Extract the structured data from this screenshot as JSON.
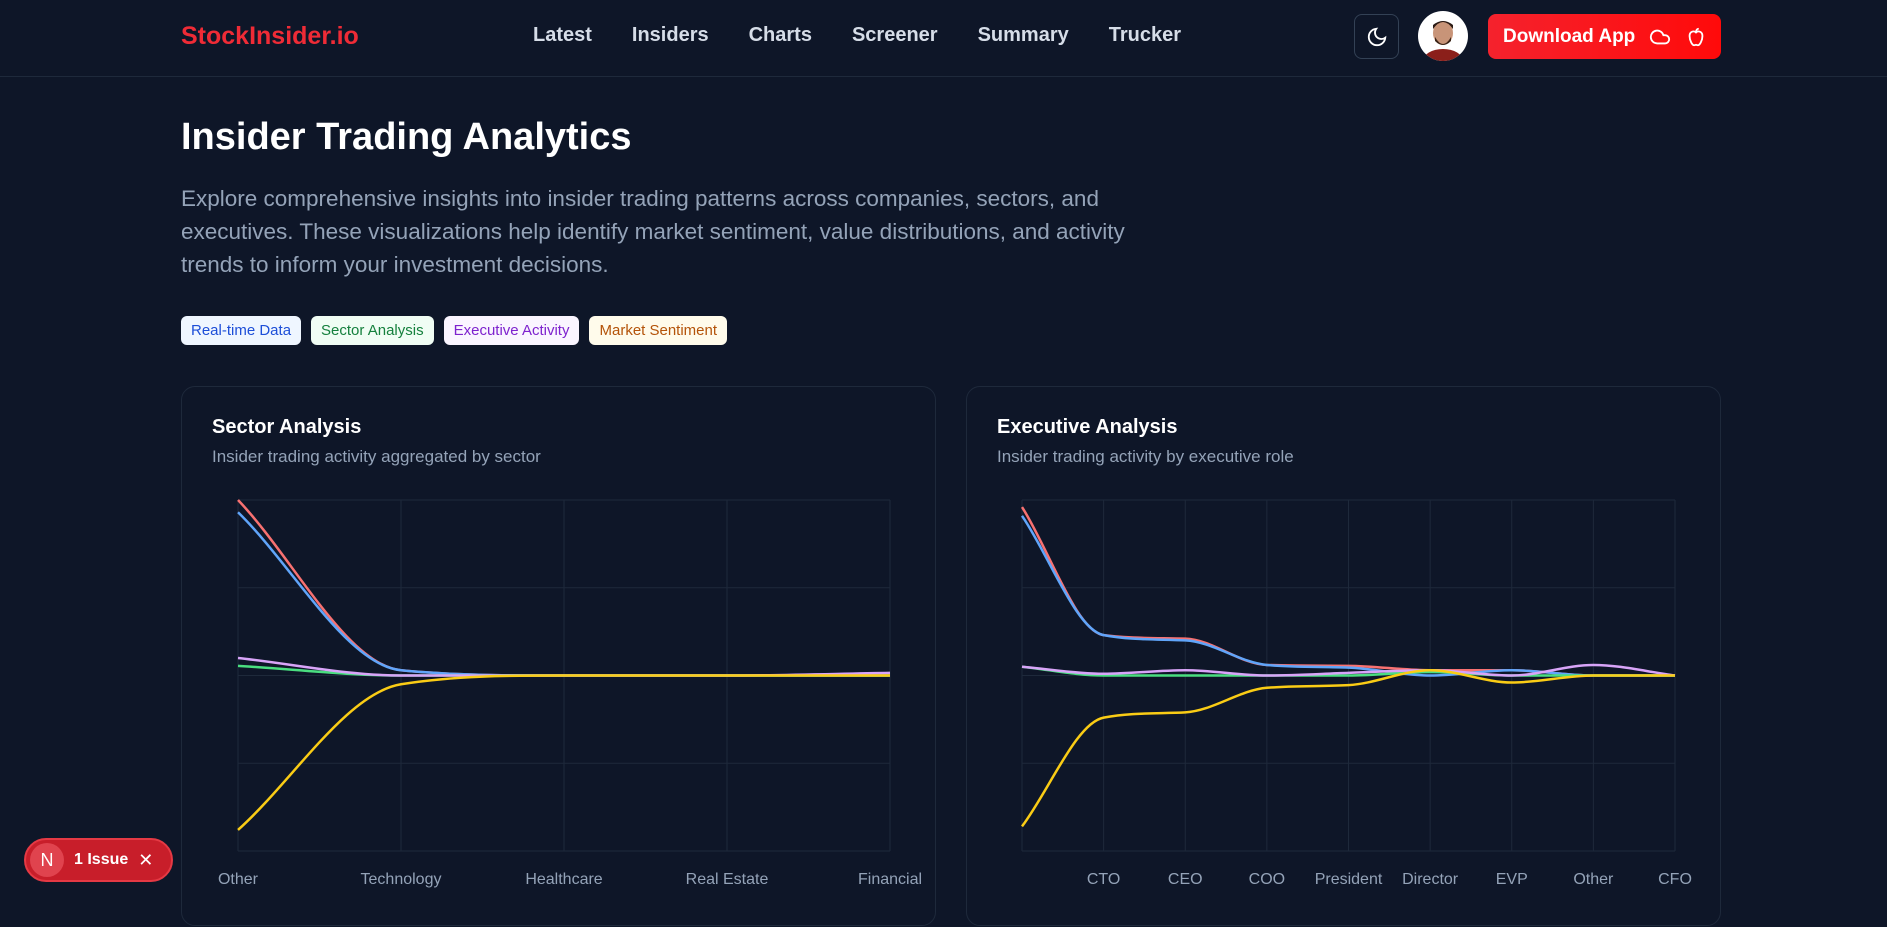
{
  "nav": {
    "logo": "StockInsider.io",
    "links": [
      "Latest",
      "Insiders",
      "Charts",
      "Screener",
      "Summary",
      "Trucker"
    ],
    "download_label": "Download App",
    "theme_icon": "moon-icon",
    "download_icons": [
      "cloud-icon",
      "apple-icon"
    ]
  },
  "hero": {
    "title": "Insider Trading Analytics",
    "description": "Explore comprehensive insights into insider trading patterns across companies, sectors, and executives. These visualizations help identify market sentiment, value distributions, and activity trends to inform your investment decisions.",
    "tags": [
      {
        "label": "Real-time Data",
        "bg": "#eff6ff",
        "fg": "#1d4ed8"
      },
      {
        "label": "Sector Analysis",
        "bg": "#f0fdf4",
        "fg": "#15803d"
      },
      {
        "label": "Executive Activity",
        "bg": "#faf5ff",
        "fg": "#7e22ce"
      },
      {
        "label": "Market Sentiment",
        "bg": "#fffbeb",
        "fg": "#b45309"
      }
    ]
  },
  "issue": {
    "letter": "N",
    "label": "1 Issue"
  },
  "cards": [
    {
      "title": "Sector Analysis",
      "subtitle": "Insider trading activity aggregated by sector"
    },
    {
      "title": "Executive Analysis",
      "subtitle": "Insider trading activity by executive role"
    }
  ],
  "chart_data": [
    {
      "type": "line",
      "categories": [
        "Other",
        "Technology",
        "Healthcare",
        "Real Estate",
        "Financial"
      ],
      "ylim": [
        -100,
        100
      ],
      "grid": true,
      "series": [
        {
          "color": "#f87171",
          "values": [
            100,
            3,
            0,
            0,
            0
          ]
        },
        {
          "color": "#60a5fa",
          "values": [
            93,
            3,
            0,
            0,
            0
          ]
        },
        {
          "color": "#4ade80",
          "values": [
            5.5,
            0,
            0,
            0,
            0
          ]
        },
        {
          "color": "#d8a4f8",
          "values": [
            10,
            0,
            0,
            0,
            1.5
          ]
        },
        {
          "color": "#facc15",
          "values": [
            -88,
            -5,
            0,
            0,
            0
          ]
        }
      ]
    },
    {
      "type": "line",
      "categories": [
        "",
        "CTO",
        "CEO",
        "COO",
        "President",
        "Director",
        "EVP",
        "Other",
        "CFO"
      ],
      "ylim": [
        -100,
        100
      ],
      "grid": true,
      "series": [
        {
          "color": "#f87171",
          "values": [
            96,
            23,
            21,
            6,
            5.5,
            3,
            3,
            0,
            0
          ]
        },
        {
          "color": "#60a5fa",
          "values": [
            91,
            23,
            20,
            6,
            4.5,
            0,
            3,
            0,
            0
          ]
        },
        {
          "color": "#4ade80",
          "values": [
            5,
            0,
            0,
            0,
            0,
            2,
            0,
            0,
            0
          ]
        },
        {
          "color": "#d8a4f8",
          "values": [
            5,
            1,
            3,
            0,
            1.5,
            3,
            0,
            6,
            0
          ]
        },
        {
          "color": "#facc15",
          "values": [
            -86,
            -24,
            -21,
            -7,
            -5.5,
            3,
            -4,
            0,
            0
          ]
        }
      ]
    }
  ]
}
